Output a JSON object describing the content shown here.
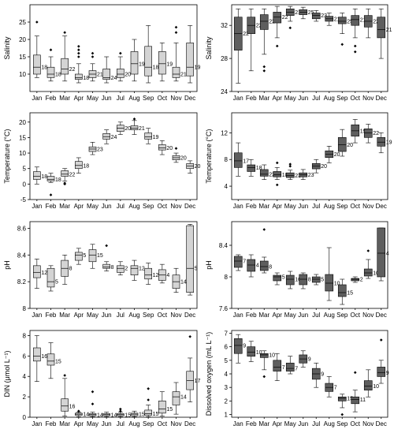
{
  "months": [
    "Jan",
    "Feb",
    "Mar",
    "Apr",
    "May",
    "Jun",
    "Jul",
    "Aug",
    "Sep",
    "Oct",
    "Nov",
    "Dec"
  ],
  "colors": {
    "left_box": "#d4d4d4",
    "right_box": "#5e5e5e"
  },
  "chart_data": [
    {
      "type": "box",
      "ylabel": "Salinity",
      "ylim": [
        5,
        30
      ],
      "yticks": [
        10,
        15,
        20,
        25
      ],
      "n": [
        "18",
        "18",
        "22",
        "18",
        "21",
        "24",
        "20",
        "19",
        "18",
        "19",
        "21",
        "19"
      ],
      "boxes": [
        {
          "min": 9,
          "q1": 10,
          "med": 12,
          "q3": 15.5,
          "max": 21,
          "outliers": [
            25
          ]
        },
        {
          "min": 8,
          "q1": 9,
          "med": 10,
          "q3": 12,
          "max": 15,
          "outliers": [
            17
          ]
        },
        {
          "min": 8,
          "q1": 10,
          "med": 11.5,
          "q3": 14.5,
          "max": 21,
          "outliers": [
            22
          ]
        },
        {
          "min": 7.5,
          "q1": 8.5,
          "med": 9,
          "q3": 10,
          "max": 13,
          "outliers": [
            15,
            16,
            17,
            18
          ]
        },
        {
          "min": 8,
          "q1": 9,
          "med": 10,
          "q3": 11,
          "max": 13,
          "outliers": [
            15,
            16
          ]
        },
        {
          "min": 7.5,
          "q1": 8.5,
          "med": 9,
          "q3": 11.5,
          "max": 15,
          "outliers": []
        },
        {
          "min": 8,
          "q1": 9,
          "med": 10,
          "q3": 11.5,
          "max": 15,
          "outliers": [
            16
          ]
        },
        {
          "min": 8,
          "q1": 10,
          "med": 13,
          "q3": 16.5,
          "max": 20,
          "outliers": []
        },
        {
          "min": 7.5,
          "q1": 9.5,
          "med": 12,
          "q3": 18,
          "max": 24,
          "outliers": []
        },
        {
          "min": 8,
          "q1": 10,
          "med": 13,
          "q3": 16.5,
          "max": 19,
          "outliers": []
        },
        {
          "min": 8,
          "q1": 9,
          "med": 10,
          "q3": 12,
          "max": 19,
          "outliers": [
            22,
            23.5
          ]
        },
        {
          "min": 7.5,
          "q1": 9.5,
          "med": 12,
          "q3": 19,
          "max": 24,
          "outliers": []
        }
      ]
    },
    {
      "type": "box",
      "ylabel": "Salinity",
      "ylim": [
        24,
        34.5
      ],
      "yticks": [
        24,
        28,
        32
      ],
      "n": [
        "22",
        "22",
        "22",
        "22",
        "21",
        "25",
        "23",
        "21",
        "25",
        "21",
        "22",
        "21"
      ],
      "boxes": [
        {
          "min": 25,
          "q1": 29,
          "med": 31,
          "q3": 33,
          "max": 34,
          "outliers": []
        },
        {
          "min": 26.5,
          "q1": 31,
          "med": 32,
          "q3": 33,
          "max": 34,
          "outliers": []
        },
        {
          "min": 28.5,
          "q1": 31.5,
          "med": 32.5,
          "q3": 33.3,
          "max": 34,
          "outliers": [
            27,
            26.5
          ]
        },
        {
          "min": 30.5,
          "q1": 32.3,
          "med": 33,
          "q3": 33.6,
          "max": 34.3,
          "outliers": [
            29.5
          ]
        },
        {
          "min": 32.5,
          "q1": 33.2,
          "med": 33.6,
          "q3": 34,
          "max": 34.3,
          "outliers": [
            31.7
          ]
        },
        {
          "min": 32.8,
          "q1": 33.3,
          "med": 33.6,
          "q3": 33.9,
          "max": 34.2,
          "outliers": []
        },
        {
          "min": 32.5,
          "q1": 32.8,
          "med": 33.2,
          "q3": 33.5,
          "max": 33.8,
          "outliers": []
        },
        {
          "min": 32,
          "q1": 32.5,
          "med": 32.8,
          "q3": 33.1,
          "max": 33.5,
          "outliers": []
        },
        {
          "min": 31,
          "q1": 32.2,
          "med": 32.5,
          "q3": 33,
          "max": 33.5,
          "outliers": [
            29.7
          ]
        },
        {
          "min": 30.5,
          "q1": 32,
          "med": 32.7,
          "q3": 33.2,
          "max": 34,
          "outliers": [
            29.5,
            28.8
          ]
        },
        {
          "min": 30.5,
          "q1": 31.8,
          "med": 32.5,
          "q3": 33.2,
          "max": 34,
          "outliers": []
        },
        {
          "min": 28,
          "q1": 30.5,
          "med": 31.5,
          "q3": 33,
          "max": 34,
          "outliers": []
        }
      ]
    },
    {
      "type": "box",
      "ylabel": "Temperature (°C)",
      "ylim": [
        -5,
        23
      ],
      "yticks": [
        -5,
        0,
        5,
        10,
        15,
        20
      ],
      "n": [
        "18",
        "18",
        "22",
        "18",
        "23",
        "24",
        "20",
        "21",
        "19",
        "20",
        "20",
        "20"
      ],
      "boxes": [
        {
          "min": 0,
          "q1": 1.5,
          "med": 2.5,
          "q3": 4,
          "max": 5.5,
          "outliers": []
        },
        {
          "min": 0.5,
          "q1": 1,
          "med": 1.5,
          "q3": 2.5,
          "max": 3.5,
          "outliers": [
            -3.5
          ]
        },
        {
          "min": 1,
          "q1": 2.5,
          "med": 3.2,
          "q3": 4.3,
          "max": 5,
          "outliers": [
            0.3,
            0
          ]
        },
        {
          "min": 3.5,
          "q1": 5,
          "med": 6,
          "q3": 7.3,
          "max": 8.5,
          "outliers": []
        },
        {
          "min": 9.5,
          "q1": 10.5,
          "med": 11.3,
          "q3": 12,
          "max": 13.5,
          "outliers": []
        },
        {
          "min": 13,
          "q1": 14.5,
          "med": 15.3,
          "q3": 16.3,
          "max": 17.5,
          "outliers": []
        },
        {
          "min": 16,
          "q1": 17,
          "med": 18,
          "q3": 19,
          "max": 20,
          "outliers": []
        },
        {
          "min": 16,
          "q1": 17.5,
          "med": 18,
          "q3": 18.8,
          "max": 20.5,
          "outliers": [
            21
          ]
        },
        {
          "min": 13,
          "q1": 14.5,
          "med": 15.2,
          "q3": 16.5,
          "max": 18,
          "outliers": []
        },
        {
          "min": 9.5,
          "q1": 11,
          "med": 11.7,
          "q3": 12.7,
          "max": 14,
          "outliers": []
        },
        {
          "min": 7,
          "q1": 7.8,
          "med": 8.5,
          "q3": 9.2,
          "max": 10,
          "outliers": [
            11.5
          ]
        },
        {
          "min": 3.5,
          "q1": 5,
          "med": 5.8,
          "q3": 6.6,
          "max": 7.5,
          "outliers": []
        }
      ]
    },
    {
      "type": "box",
      "ylabel": "Temperature (°C)",
      "ylim": [
        2,
        15
      ],
      "yticks": [
        4,
        8,
        12
      ],
      "n": [
        "17",
        "18",
        "22",
        "18",
        "23",
        "23",
        "20",
        "20",
        "20",
        "19",
        "22",
        "19"
      ],
      "boxes": [
        {
          "min": 5.5,
          "q1": 6.8,
          "med": 7.8,
          "q3": 9,
          "max": 10.5,
          "outliers": []
        },
        {
          "min": 5.5,
          "q1": 6.2,
          "med": 6.8,
          "q3": 7.2,
          "max": 8,
          "outliers": []
        },
        {
          "min": 5,
          "q1": 5.5,
          "med": 5.8,
          "q3": 6.5,
          "max": 7.2,
          "outliers": []
        },
        {
          "min": 5,
          "q1": 5.4,
          "med": 5.7,
          "q3": 6.2,
          "max": 6.8,
          "outliers": [
            7.5,
            4.2
          ]
        },
        {
          "min": 5,
          "q1": 5.3,
          "med": 5.6,
          "q3": 6,
          "max": 6.4,
          "outliers": [
            7.3,
            7
          ]
        },
        {
          "min": 5,
          "q1": 5.4,
          "med": 5.7,
          "q3": 6,
          "max": 6.5,
          "outliers": []
        },
        {
          "min": 6,
          "q1": 6.6,
          "med": 7,
          "q3": 7.4,
          "max": 8,
          "outliers": []
        },
        {
          "min": 7.5,
          "q1": 8.3,
          "med": 8.8,
          "q3": 9.3,
          "max": 10,
          "outliers": []
        },
        {
          "min": 8.5,
          "q1": 9.2,
          "med": 10.2,
          "q3": 11.3,
          "max": 12.5,
          "outliers": []
        },
        {
          "min": 10.5,
          "q1": 11.5,
          "med": 12.3,
          "q3": 13.2,
          "max": 14,
          "outliers": []
        },
        {
          "min": 10.5,
          "q1": 11.3,
          "med": 12,
          "q3": 12.6,
          "max": 13.3,
          "outliers": []
        },
        {
          "min": 9,
          "q1": 10,
          "med": 10.6,
          "q3": 11.3,
          "max": 12,
          "outliers": []
        }
      ]
    },
    {
      "type": "box",
      "ylabel": "pH",
      "ylim": [
        8.0,
        8.65
      ],
      "yticks": [
        8.0,
        8.2,
        8.4,
        8.6
      ],
      "n": [
        "12",
        "5",
        "8",
        "5",
        "15",
        "8",
        "2",
        "12",
        "12",
        "4",
        "14",
        "5"
      ],
      "boxes": [
        {
          "min": 8.15,
          "q1": 8.23,
          "med": 8.27,
          "q3": 8.32,
          "max": 8.37,
          "outliers": []
        },
        {
          "min": 8.13,
          "q1": 8.16,
          "med": 8.2,
          "q3": 8.3,
          "max": 8.32,
          "outliers": []
        },
        {
          "min": 8.18,
          "q1": 8.24,
          "med": 8.3,
          "q3": 8.36,
          "max": 8.4,
          "outliers": []
        },
        {
          "min": 8.33,
          "q1": 8.36,
          "med": 8.4,
          "q3": 8.42,
          "max": 8.45,
          "outliers": []
        },
        {
          "min": 8.3,
          "q1": 8.35,
          "med": 8.4,
          "q3": 8.44,
          "max": 8.48,
          "outliers": []
        },
        {
          "min": 8.28,
          "q1": 8.3,
          "med": 8.31,
          "q3": 8.33,
          "max": 8.35,
          "outliers": [
            8.47
          ]
        },
        {
          "min": 8.25,
          "q1": 8.27,
          "med": 8.3,
          "q3": 8.32,
          "max": 8.35,
          "outliers": []
        },
        {
          "min": 8.21,
          "q1": 8.25,
          "med": 8.3,
          "q3": 8.32,
          "max": 8.36,
          "outliers": []
        },
        {
          "min": 8.18,
          "q1": 8.22,
          "med": 8.25,
          "q3": 8.3,
          "max": 8.34,
          "outliers": []
        },
        {
          "min": 8.19,
          "q1": 8.21,
          "med": 8.25,
          "q3": 8.29,
          "max": 8.33,
          "outliers": []
        },
        {
          "min": 8.12,
          "q1": 8.15,
          "med": 8.2,
          "q3": 8.25,
          "max": 8.3,
          "outliers": []
        },
        {
          "min": 8.1,
          "q1": 8.12,
          "med": 8.3,
          "q3": 8.62,
          "max": 8.63,
          "outliers": []
        }
      ]
    },
    {
      "type": "box",
      "ylabel": "pH",
      "ylim": [
        7.6,
        8.7
      ],
      "yticks": [
        7.6,
        8.0,
        8.4,
        8.8
      ],
      "n": [
        "7",
        "4",
        "8",
        "5",
        "16",
        "8",
        "5",
        "10",
        "15",
        "2",
        "10",
        "4"
      ],
      "boxes": [
        {
          "min": 8.08,
          "q1": 8.12,
          "med": 8.2,
          "q3": 8.26,
          "max": 8.28,
          "outliers": []
        },
        {
          "min": 8.0,
          "q1": 8.07,
          "med": 8.15,
          "q3": 8.22,
          "max": 8.28,
          "outliers": []
        },
        {
          "min": 8.05,
          "q1": 8.08,
          "med": 8.13,
          "q3": 8.2,
          "max": 8.25,
          "outliers": [
            8.6
          ]
        },
        {
          "min": 7.9,
          "q1": 7.95,
          "med": 8.0,
          "q3": 8.02,
          "max": 8.05,
          "outliers": []
        },
        {
          "min": 7.85,
          "q1": 7.9,
          "med": 7.97,
          "q3": 8.02,
          "max": 8.07,
          "outliers": []
        },
        {
          "min": 7.85,
          "q1": 7.9,
          "med": 7.97,
          "q3": 8.03,
          "max": 8.05,
          "outliers": []
        },
        {
          "min": 7.9,
          "q1": 7.93,
          "med": 7.97,
          "q3": 8.0,
          "max": 8.03,
          "outliers": []
        },
        {
          "min": 7.7,
          "q1": 7.82,
          "med": 7.92,
          "q3": 8.03,
          "max": 8.37,
          "outliers": []
        },
        {
          "min": 7.65,
          "q1": 7.75,
          "med": 7.8,
          "q3": 7.9,
          "max": 7.97,
          "outliers": []
        },
        {
          "min": 7.93,
          "q1": 7.95,
          "med": 7.97,
          "q3": 7.98,
          "max": 8.0,
          "outliers": []
        },
        {
          "min": 7.98,
          "q1": 8.01,
          "med": 8.05,
          "q3": 8.1,
          "max": 8.22,
          "outliers": [
            8.33
          ]
        },
        {
          "min": 7.95,
          "q1": 8.0,
          "med": 8.3,
          "q3": 8.62,
          "max": 8.62,
          "outliers": []
        }
      ]
    },
    {
      "type": "box",
      "ylabel": "DIN (μmol L⁻¹)",
      "ylim": [
        0,
        8.5
      ],
      "yticks": [
        0,
        2,
        4,
        6,
        8
      ],
      "n": [
        "16",
        "15",
        "16",
        "14",
        "14",
        "14",
        "15",
        "15",
        "15",
        "15",
        "14",
        "17"
      ],
      "boxes": [
        {
          "min": 3.5,
          "q1": 5.5,
          "med": 6.0,
          "q3": 6.8,
          "max": 8,
          "outliers": []
        },
        {
          "min": 3.8,
          "q1": 5.1,
          "med": 5.5,
          "q3": 6.2,
          "max": 7.3,
          "outliers": []
        },
        {
          "min": 0.1,
          "q1": 0.6,
          "med": 1.1,
          "q3": 1.8,
          "max": 3.8,
          "outliers": [
            4.1
          ]
        },
        {
          "min": 0.05,
          "q1": 0.2,
          "med": 0.3,
          "q3": 0.4,
          "max": 0.5,
          "outliers": [
            0.6
          ]
        },
        {
          "min": 0.05,
          "q1": 0.15,
          "med": 0.25,
          "q3": 0.35,
          "max": 0.5,
          "outliers": [
            2.5,
            1.3
          ]
        },
        {
          "min": 0.05,
          "q1": 0.15,
          "med": 0.25,
          "q3": 0.35,
          "max": 0.5,
          "outliers": []
        },
        {
          "min": 0.05,
          "q1": 0.15,
          "med": 0.25,
          "q3": 0.35,
          "max": 0.5,
          "outliers": [
            0.8,
            0.6
          ]
        },
        {
          "min": 0.05,
          "q1": 0.15,
          "med": 0.3,
          "q3": 0.4,
          "max": 0.6,
          "outliers": []
        },
        {
          "min": 0.05,
          "q1": 0.2,
          "med": 0.35,
          "q3": 0.7,
          "max": 1.2,
          "outliers": [
            2.8,
            1.7
          ]
        },
        {
          "min": 0.1,
          "q1": 0.4,
          "med": 0.8,
          "q3": 1.6,
          "max": 2.5,
          "outliers": []
        },
        {
          "min": 0.3,
          "q1": 1.2,
          "med": 2.0,
          "q3": 2.5,
          "max": 3.4,
          "outliers": []
        },
        {
          "min": 1.5,
          "q1": 2.7,
          "med": 3.6,
          "q3": 4.5,
          "max": 5.8,
          "outliers": [
            7.9
          ]
        }
      ]
    },
    {
      "type": "box",
      "ylabel": "Dissolved oxygen (mL L⁻¹)",
      "ylim": [
        0.8,
        7.2
      ],
      "yticks": [
        1,
        2,
        3,
        4,
        5,
        6,
        7
      ],
      "n": [
        "9",
        "10",
        "10",
        "7",
        "7",
        "9",
        "9",
        "7",
        "15",
        "11",
        "10",
        "9"
      ],
      "boxes": [
        {
          "min": 4.8,
          "q1": 5.5,
          "med": 6.1,
          "q3": 6.6,
          "max": 6.9,
          "outliers": []
        },
        {
          "min": 4.9,
          "q1": 5.3,
          "med": 5.6,
          "q3": 6.0,
          "max": 6.4,
          "outliers": []
        },
        {
          "min": 4.3,
          "q1": 5.2,
          "med": 5.4,
          "q3": 5.5,
          "max": 5.7,
          "outliers": [
            3.8
          ]
        },
        {
          "min": 3.5,
          "q1": 4.2,
          "med": 4.5,
          "q3": 5.0,
          "max": 5.5,
          "outliers": []
        },
        {
          "min": 4.0,
          "q1": 4.2,
          "med": 4.4,
          "q3": 4.8,
          "max": 5.3,
          "outliers": []
        },
        {
          "min": 4.5,
          "q1": 4.8,
          "med": 5.1,
          "q3": 5.4,
          "max": 5.7,
          "outliers": []
        },
        {
          "min": 3.0,
          "q1": 3.6,
          "med": 4.0,
          "q3": 4.4,
          "max": 4.8,
          "outliers": []
        },
        {
          "min": 2.3,
          "q1": 2.7,
          "med": 3.0,
          "q3": 3.3,
          "max": 3.8,
          "outliers": []
        },
        {
          "min": 1.5,
          "q1": 2.0,
          "med": 2.2,
          "q3": 2.3,
          "max": 2.5,
          "outliers": [
            1.0
          ]
        },
        {
          "min": 1.2,
          "q1": 1.8,
          "med": 2.1,
          "q3": 2.3,
          "max": 2.8,
          "outliers": [
            4.1
          ]
        },
        {
          "min": 2.3,
          "q1": 2.8,
          "med": 3.1,
          "q3": 3.5,
          "max": 4.3,
          "outliers": []
        },
        {
          "min": 3.3,
          "q1": 3.8,
          "med": 4.1,
          "q3": 4.5,
          "max": 5.0,
          "outliers": [
            6.5
          ]
        }
      ]
    }
  ]
}
